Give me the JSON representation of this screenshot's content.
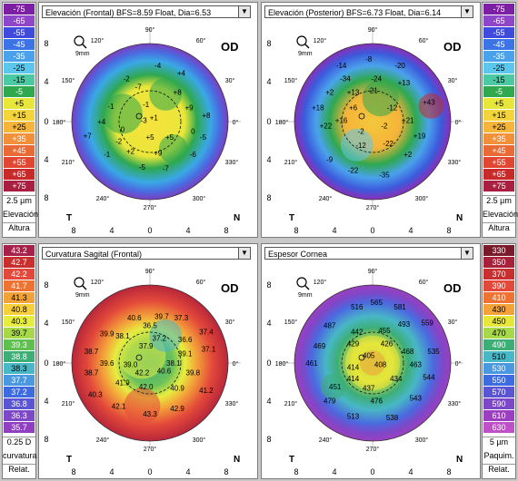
{
  "eye_label": "OD",
  "zoom_label": "9mm",
  "orientation": {
    "top": "90°",
    "bottom": "270°",
    "left": "180°",
    "right": "0°",
    "a120": "120°",
    "a60": "60°",
    "a150": "150°",
    "a30": "30°",
    "a210": "210°",
    "a330": "330°",
    "a240": "240°",
    "a300": "300°",
    "temporal": "T",
    "nasal": "N"
  },
  "axis_ticks": [
    "8",
    "4",
    "0",
    "4",
    "8"
  ],
  "maps": [
    {
      "title": "Elevación (Frontal)  BFS=8.59 Float, Dia=6.53",
      "values": [
        {
          "t": "-2",
          "x": -0.3,
          "y": -0.55
        },
        {
          "t": "-4",
          "x": 0.1,
          "y": -0.72
        },
        {
          "t": "+4",
          "x": 0.4,
          "y": -0.62
        },
        {
          "t": "-7",
          "x": -0.15,
          "y": -0.45
        },
        {
          "t": "+8",
          "x": 0.35,
          "y": -0.38
        },
        {
          "t": "-1",
          "x": -0.5,
          "y": -0.2
        },
        {
          "t": "-1",
          "x": -0.05,
          "y": -0.22
        },
        {
          "t": "+9",
          "x": 0.5,
          "y": -0.18
        },
        {
          "t": "+4",
          "x": -0.62,
          "y": 0.0
        },
        {
          "t": "-3",
          "x": -0.08,
          "y": -0.02
        },
        {
          "t": "+8",
          "x": 0.72,
          "y": -0.08
        },
        {
          "t": "+1",
          "x": 0.05,
          "y": -0.05
        },
        {
          "t": "+7",
          "x": -0.8,
          "y": 0.18
        },
        {
          "t": "0",
          "x": -0.35,
          "y": 0.1
        },
        {
          "t": "0",
          "x": 0.55,
          "y": 0.12
        },
        {
          "t": "-2",
          "x": -0.4,
          "y": 0.25
        },
        {
          "t": "+5",
          "x": 0.0,
          "y": 0.2
        },
        {
          "t": "+5",
          "x": 0.25,
          "y": 0.2
        },
        {
          "t": "-5",
          "x": 0.68,
          "y": 0.2
        },
        {
          "t": "-1",
          "x": -0.55,
          "y": 0.42
        },
        {
          "t": "+9",
          "x": 0.1,
          "y": 0.4
        },
        {
          "t": "-6",
          "x": 0.55,
          "y": 0.42
        },
        {
          "t": "+2",
          "x": -0.25,
          "y": 0.38
        },
        {
          "t": "-5",
          "x": -0.1,
          "y": 0.58
        },
        {
          "t": "-7",
          "x": 0.2,
          "y": 0.6
        }
      ]
    },
    {
      "title": "Elevación (Posterior)  BFS=6.73 Float, Dia=6.14",
      "values": [
        {
          "t": "-14",
          "x": -0.4,
          "y": -0.72
        },
        {
          "t": "-8",
          "x": -0.05,
          "y": -0.8
        },
        {
          "t": "-20",
          "x": 0.35,
          "y": -0.72
        },
        {
          "t": "-34",
          "x": -0.35,
          "y": -0.55
        },
        {
          "t": "-24",
          "x": 0.05,
          "y": -0.55
        },
        {
          "t": "+13",
          "x": 0.4,
          "y": -0.5
        },
        {
          "t": "+2",
          "x": -0.55,
          "y": -0.38
        },
        {
          "t": "+13",
          "x": -0.25,
          "y": -0.38
        },
        {
          "t": "-21",
          "x": 0.0,
          "y": -0.4
        },
        {
          "t": "+43",
          "x": 0.72,
          "y": -0.25
        },
        {
          "t": "+18",
          "x": -0.7,
          "y": -0.18
        },
        {
          "t": "+6",
          "x": -0.25,
          "y": -0.18
        },
        {
          "t": "-12",
          "x": 0.25,
          "y": -0.18
        },
        {
          "t": "+16",
          "x": -0.4,
          "y": -0.02
        },
        {
          "t": "+21",
          "x": 0.45,
          "y": -0.02
        },
        {
          "t": "+22",
          "x": -0.6,
          "y": 0.05
        },
        {
          "t": "-2",
          "x": 0.15,
          "y": 0.05
        },
        {
          "t": "-2",
          "x": -0.15,
          "y": 0.12
        },
        {
          "t": "+19",
          "x": 0.6,
          "y": 0.18
        },
        {
          "t": "-12",
          "x": -0.15,
          "y": 0.3
        },
        {
          "t": "-22",
          "x": 0.2,
          "y": 0.28
        },
        {
          "t": "+2",
          "x": 0.45,
          "y": 0.42
        },
        {
          "t": "-9",
          "x": -0.55,
          "y": 0.48
        },
        {
          "t": "-22",
          "x": -0.25,
          "y": 0.62
        },
        {
          "t": "-35",
          "x": 0.15,
          "y": 0.68
        }
      ]
    },
    {
      "title": "Curvatura Sagital (Frontal)",
      "values": [
        {
          "t": "39.9",
          "x": -0.55,
          "y": -0.38
        },
        {
          "t": "40.6",
          "x": -0.2,
          "y": -0.58
        },
        {
          "t": "39.7",
          "x": 0.15,
          "y": -0.6
        },
        {
          "t": "37.3",
          "x": 0.4,
          "y": -0.58
        },
        {
          "t": "36.5",
          "x": 0.0,
          "y": -0.48
        },
        {
          "t": "38.1",
          "x": -0.35,
          "y": -0.35
        },
        {
          "t": "37.2",
          "x": 0.12,
          "y": -0.32
        },
        {
          "t": "36.6",
          "x": 0.45,
          "y": -0.3
        },
        {
          "t": "37.4",
          "x": 0.72,
          "y": -0.4
        },
        {
          "t": "38.7",
          "x": -0.75,
          "y": -0.15
        },
        {
          "t": "37.9",
          "x": -0.05,
          "y": -0.22
        },
        {
          "t": "39.1",
          "x": 0.45,
          "y": -0.12
        },
        {
          "t": "37.1",
          "x": 0.75,
          "y": -0.18
        },
        {
          "t": "39.6",
          "x": -0.55,
          "y": 0.0
        },
        {
          "t": "38.1",
          "x": 0.3,
          "y": 0.0
        },
        {
          "t": "38.7",
          "x": -0.75,
          "y": 0.12
        },
        {
          "t": "39.0",
          "x": -0.25,
          "y": 0.02
        },
        {
          "t": "42.2",
          "x": -0.1,
          "y": 0.12
        },
        {
          "t": "40.6",
          "x": 0.18,
          "y": 0.1
        },
        {
          "t": "39.8",
          "x": 0.55,
          "y": 0.12
        },
        {
          "t": "41.9",
          "x": -0.35,
          "y": 0.25
        },
        {
          "t": "42.0",
          "x": -0.05,
          "y": 0.3
        },
        {
          "t": "40.9",
          "x": 0.35,
          "y": 0.32
        },
        {
          "t": "41.2",
          "x": 0.72,
          "y": 0.35
        },
        {
          "t": "40.3",
          "x": -0.7,
          "y": 0.4
        },
        {
          "t": "42.1",
          "x": -0.4,
          "y": 0.55
        },
        {
          "t": "43.3",
          "x": 0.0,
          "y": 0.65
        },
        {
          "t": "42.9",
          "x": 0.35,
          "y": 0.58
        }
      ]
    },
    {
      "title": "Espesor Cornea",
      "values": [
        {
          "t": "516",
          "x": -0.2,
          "y": -0.72
        },
        {
          "t": "565",
          "x": 0.05,
          "y": -0.78
        },
        {
          "t": "581",
          "x": 0.35,
          "y": -0.72
        },
        {
          "t": "487",
          "x": -0.55,
          "y": -0.48
        },
        {
          "t": "493",
          "x": 0.4,
          "y": -0.5
        },
        {
          "t": "559",
          "x": 0.7,
          "y": -0.52
        },
        {
          "t": "442",
          "x": -0.2,
          "y": -0.4
        },
        {
          "t": "455",
          "x": 0.15,
          "y": -0.42
        },
        {
          "t": "429",
          "x": -0.25,
          "y": -0.25
        },
        {
          "t": "426",
          "x": 0.18,
          "y": -0.25
        },
        {
          "t": "469",
          "x": -0.68,
          "y": -0.22
        },
        {
          "t": "405",
          "x": -0.05,
          "y": -0.1
        },
        {
          "t": "468",
          "x": 0.45,
          "y": -0.15
        },
        {
          "t": "535",
          "x": 0.78,
          "y": -0.15
        },
        {
          "t": "461",
          "x": -0.78,
          "y": 0.0
        },
        {
          "t": "408",
          "x": 0.1,
          "y": 0.02
        },
        {
          "t": "463",
          "x": 0.55,
          "y": 0.02
        },
        {
          "t": "414",
          "x": -0.25,
          "y": 0.05
        },
        {
          "t": "414",
          "x": -0.25,
          "y": 0.2
        },
        {
          "t": "434",
          "x": 0.3,
          "y": 0.2
        },
        {
          "t": "544",
          "x": 0.72,
          "y": 0.18
        },
        {
          "t": "451",
          "x": -0.48,
          "y": 0.3
        },
        {
          "t": "437",
          "x": -0.05,
          "y": 0.32
        },
        {
          "t": "479",
          "x": -0.55,
          "y": 0.48
        },
        {
          "t": "476",
          "x": 0.05,
          "y": 0.48
        },
        {
          "t": "543",
          "x": 0.55,
          "y": 0.45
        },
        {
          "t": "513",
          "x": -0.25,
          "y": 0.68
        },
        {
          "t": "538",
          "x": 0.25,
          "y": 0.7
        }
      ]
    }
  ],
  "scales": [
    {
      "labels": [
        "-75",
        "-65",
        "-55",
        "-45",
        "-35",
        "-25",
        "-15",
        "-5",
        "+5",
        "+15",
        "+25",
        "+35",
        "+45",
        "+55",
        "+65",
        "+75"
      ],
      "colors": [
        "#7c1fa5",
        "#8f46c8",
        "#3f4bdc",
        "#3a74e6",
        "#4aa2ec",
        "#5bc7ec",
        "#4ac9a2",
        "#2fa84f",
        "#e7e63a",
        "#f3d43d",
        "#f5b43a",
        "#f0903a",
        "#ea6a36",
        "#e04630",
        "#c82a2a",
        "#a81f3f"
      ],
      "unit": "2.5 µm",
      "label_a": "Elevación",
      "label_b": "Altura"
    },
    {
      "labels": [
        "-75",
        "-65",
        "-55",
        "-45",
        "-35",
        "-25",
        "-15",
        "-5",
        "+5",
        "+15",
        "+25",
        "+35",
        "+45",
        "+55",
        "+65",
        "+75"
      ],
      "colors": [
        "#7c1fa5",
        "#8f46c8",
        "#3f4bdc",
        "#3a74e6",
        "#4aa2ec",
        "#5bc7ec",
        "#4ac9a2",
        "#2fa84f",
        "#e7e63a",
        "#f3d43d",
        "#f5b43a",
        "#f0903a",
        "#ea6a36",
        "#e04630",
        "#c82a2a",
        "#a81f3f"
      ],
      "unit": "2.5 µm",
      "label_a": "Elevación",
      "label_b": "Altura"
    },
    {
      "labels": [
        "43.2",
        "42.7",
        "42.2",
        "41.7",
        "41.3",
        "40.8",
        "40.3",
        "39.7",
        "39.3",
        "38.8",
        "38.3",
        "37.7",
        "37.2",
        "36.8",
        "36.3",
        "35.7"
      ],
      "colors": [
        "#a8214a",
        "#c8302f",
        "#e3493a",
        "#ee7232",
        "#f3a23a",
        "#f6cf3b",
        "#e7ed3f",
        "#a6d84a",
        "#5fc04f",
        "#3dae76",
        "#48b7c6",
        "#4a98e0",
        "#3c6ce0",
        "#5b55d4",
        "#7d48c8",
        "#8f3fc0"
      ],
      "unit": "0.25 D",
      "label_a": "curvatura",
      "label_b": "Relat."
    },
    {
      "labels": [
        "330",
        "350",
        "370",
        "390",
        "410",
        "430",
        "450",
        "470",
        "490",
        "510",
        "530",
        "550",
        "570",
        "590",
        "610",
        "630"
      ],
      "colors": [
        "#7a1a2a",
        "#a8213a",
        "#c8302f",
        "#e3493a",
        "#ee7232",
        "#f3a23a",
        "#e7e63a",
        "#a6d84a",
        "#3dae76",
        "#48b7c6",
        "#4a98e0",
        "#3c6ce0",
        "#5b55d4",
        "#7d48c8",
        "#9b3fc0",
        "#c050c8"
      ],
      "unit": "5 µm",
      "label_a": "Paquim.",
      "label_b": "Relat."
    }
  ]
}
